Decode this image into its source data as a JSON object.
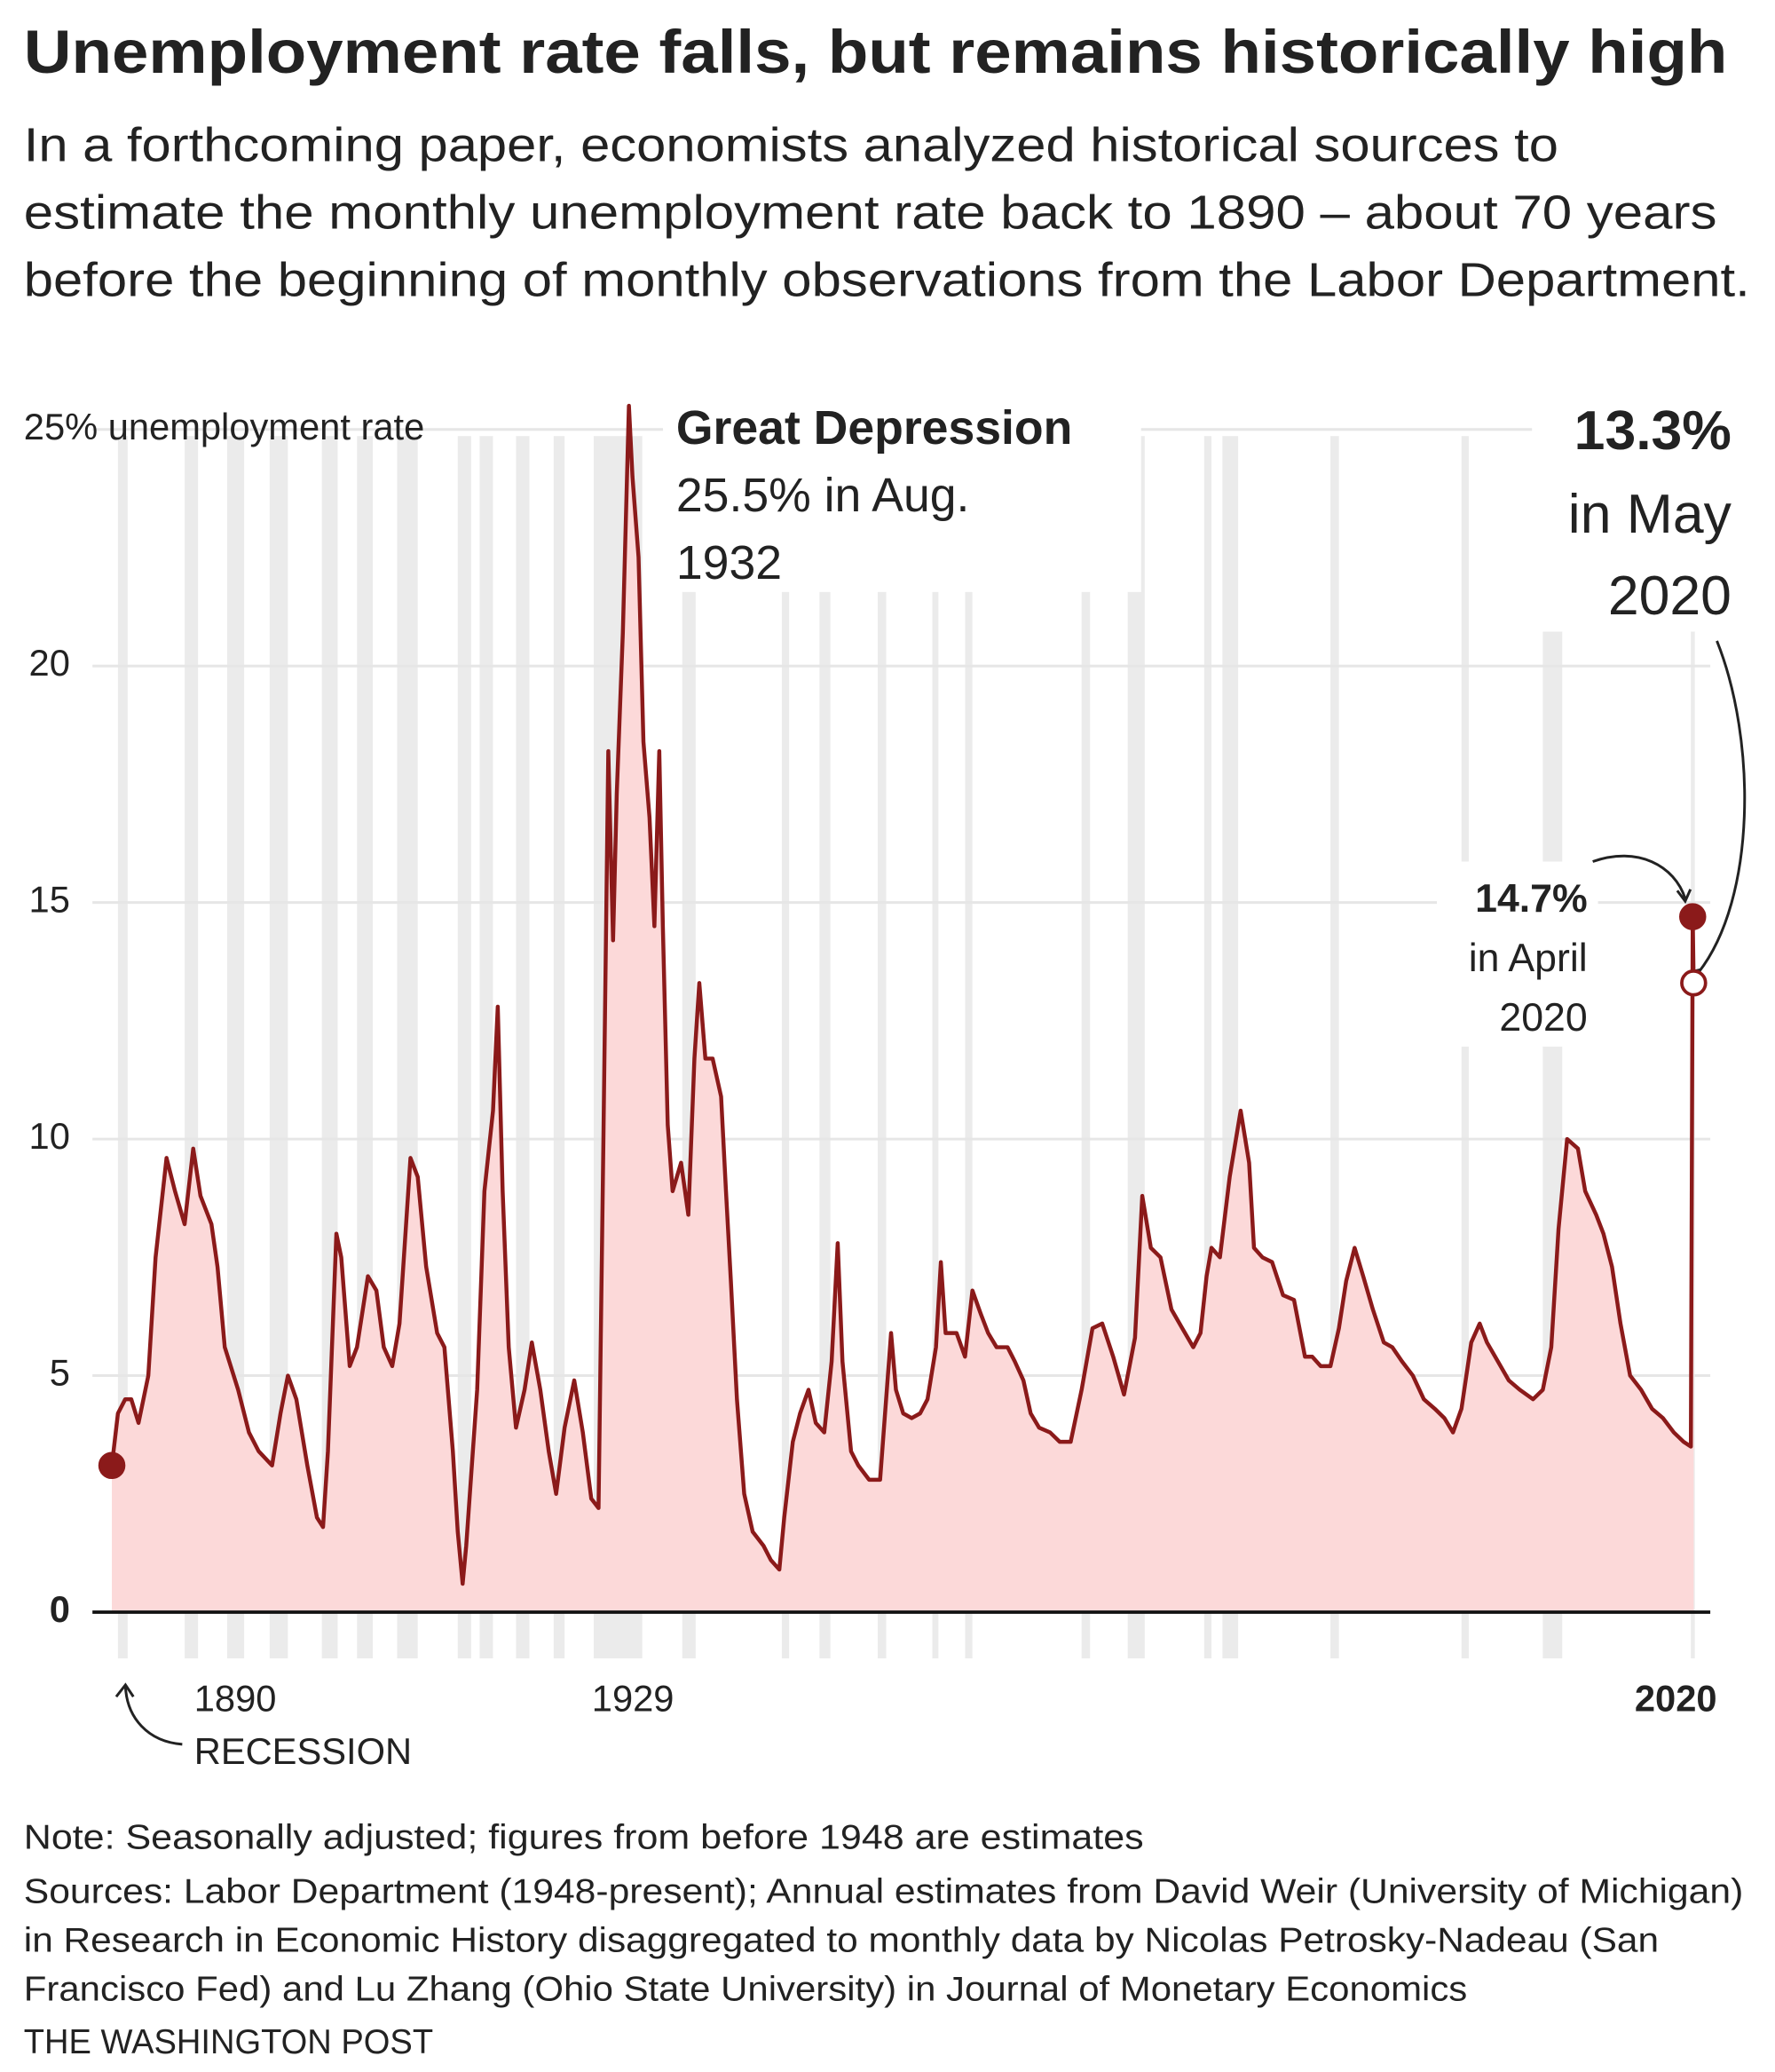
{
  "chart_data": {
    "type": "area",
    "title": "Unemployment rate falls, but remains historically high",
    "subtitle": [
      "In a forthcoming paper, economists analyzed historical sources to",
      "estimate the monthly unemployment rate back to 1890 – about 70 years",
      "before the beginning of monthly observations from the Labor Department."
    ],
    "color": "#8b1a1a",
    "fill_color": "#fcd9d9",
    "band_color": "#ebebeb",
    "grid": true,
    "xlim": [
      1888.4,
      2021.7
    ],
    "ylim": [
      0,
      25
    ],
    "yticks": [
      0,
      5,
      10,
      15,
      20,
      {
        "value": 25,
        "label": "25% unemployment rate"
      }
    ],
    "xticks": [
      1890,
      1929,
      2020
    ],
    "x": [
      1890.0,
      1890.5,
      1891.1,
      1891.6,
      1892.2,
      1893.0,
      1893.6,
      1894.5,
      1895.2,
      1896.0,
      1896.7,
      1897.3,
      1898.2,
      1898.7,
      1899.3,
      1900.4,
      1901.3,
      1902.1,
      1903.2,
      1903.9,
      1904.5,
      1905.2,
      1906.1,
      1906.9,
      1907.4,
      1907.8,
      1908.5,
      1908.9,
      1909.6,
      1910.2,
      1911.1,
      1911.8,
      1912.4,
      1913.1,
      1913.7,
      1914.6,
      1915.2,
      1915.9,
      1916.8,
      1917.4,
      1918.1,
      1918.5,
      1918.9,
      1919.2,
      1920.1,
      1920.7,
      1921.4,
      1921.8,
      1922.2,
      1922.7,
      1923.3,
      1924.0,
      1924.6,
      1925.3,
      1926.0,
      1926.6,
      1927.3,
      1928.1,
      1928.8,
      1929.5,
      1930.1,
      1930.5,
      1930.9,
      1931.3,
      1931.6,
      1932.1,
      1932.6,
      1932.9,
      1933.4,
      1933.8,
      1934.3,
      1934.7,
      1935.1,
      1935.4,
      1935.8,
      1936.2,
      1936.9,
      1937.5,
      1938.0,
      1938.4,
      1938.9,
      1939.5,
      1940.2,
      1940.6,
      1941.0,
      1941.5,
      1942.1,
      1942.8,
      1943.7,
      1944.3,
      1945.0,
      1945.4,
      1946.1,
      1946.7,
      1947.4,
      1948.0,
      1948.7,
      1949.3,
      1949.8,
      1950.2,
      1950.9,
      1951.5,
      1952.4,
      1953.3,
      1954.2,
      1954.6,
      1955.2,
      1955.9,
      1956.6,
      1957.2,
      1957.9,
      1958.3,
      1958.7,
      1959.6,
      1960.3,
      1960.9,
      1961.6,
      1962.2,
      1962.9,
      1963.8,
      1964.4,
      1965.1,
      1965.7,
      1966.4,
      1967.3,
      1968.1,
      1969.0,
      1969.9,
      1970.8,
      1971.6,
      1972.5,
      1973.4,
      1974.3,
      1974.9,
      1975.6,
      1976.4,
      1977.3,
      1978.2,
      1979.1,
      1979.7,
      1980.2,
      1980.6,
      1981.3,
      1982.1,
      1983.0,
      1983.7,
      1984.1,
      1984.8,
      1985.6,
      1986.5,
      1987.4,
      1988.3,
      1988.9,
      1989.6,
      1990.4,
      1991.1,
      1991.7,
      1992.4,
      1993.1,
      1993.9,
      1994.8,
      1995.5,
      1996.3,
      1997.2,
      1998.1,
      1999.0,
      1999.8,
      2000.5,
      2001.2,
      2002.0,
      2002.7,
      2003.3,
      2004.2,
      2005.1,
      2006.0,
      2007.1,
      2007.9,
      2008.6,
      2009.2,
      2009.9,
      2010.8,
      2011.4,
      2012.3,
      2012.9,
      2013.6,
      2014.3,
      2015.1,
      2016.0,
      2016.9,
      2017.8,
      2018.7,
      2019.5,
      2020.1,
      2020.25,
      2020.33
    ],
    "values": [
      3.1,
      4.2,
      4.5,
      4.5,
      4.0,
      5.0,
      7.5,
      9.6,
      8.9,
      8.2,
      9.8,
      8.8,
      8.2,
      7.3,
      5.6,
      4.7,
      3.8,
      3.4,
      3.1,
      4.2,
      5.0,
      4.5,
      3.1,
      2.0,
      1.8,
      3.4,
      8.0,
      7.5,
      5.2,
      5.6,
      7.1,
      6.8,
      5.6,
      5.2,
      6.1,
      9.6,
      9.2,
      7.3,
      5.9,
      5.6,
      3.4,
      1.7,
      0.6,
      1.4,
      4.7,
      8.9,
      10.6,
      12.8,
      8.9,
      5.6,
      3.9,
      4.7,
      5.7,
      4.7,
      3.4,
      2.5,
      3.9,
      4.9,
      3.8,
      2.4,
      2.2,
      10.0,
      18.2,
      14.2,
      17.3,
      20.7,
      25.5,
      24.0,
      22.3,
      18.4,
      16.8,
      14.5,
      18.2,
      14.5,
      10.3,
      8.9,
      9.5,
      8.4,
      11.7,
      13.3,
      11.7,
      11.7,
      10.9,
      8.9,
      7.0,
      4.5,
      2.5,
      1.7,
      1.4,
      1.1,
      0.9,
      2.0,
      3.6,
      4.2,
      4.7,
      4.0,
      3.8,
      5.3,
      7.8,
      5.3,
      3.4,
      3.1,
      2.8,
      2.8,
      5.9,
      4.7,
      4.2,
      4.1,
      4.2,
      4.5,
      5.6,
      7.4,
      5.9,
      5.9,
      5.4,
      6.8,
      6.3,
      5.9,
      5.6,
      5.6,
      5.3,
      4.9,
      4.2,
      3.9,
      3.8,
      3.6,
      3.6,
      4.7,
      6.0,
      6.1,
      5.4,
      4.6,
      5.8,
      8.8,
      7.7,
      7.5,
      6.4,
      6.0,
      5.6,
      5.9,
      7.1,
      7.7,
      7.5,
      9.2,
      10.6,
      9.5,
      7.7,
      7.5,
      7.4,
      6.7,
      6.6,
      5.4,
      5.4,
      5.2,
      5.2,
      6.0,
      7.0,
      7.7,
      7.1,
      6.4,
      5.7,
      5.6,
      5.3,
      5.0,
      4.5,
      4.3,
      4.1,
      3.8,
      4.3,
      5.7,
      6.1,
      5.7,
      5.3,
      4.9,
      4.7,
      4.5,
      4.7,
      5.6,
      8.1,
      10.0,
      9.8,
      8.9,
      8.4,
      8.0,
      7.3,
      6.1,
      5.0,
      4.7,
      4.3,
      4.1,
      3.8,
      3.6,
      3.5,
      14.7,
      13.3
    ],
    "recessions": [
      [
        1890.5,
        1891.3
      ],
      [
        1896.0,
        1897.1
      ],
      [
        1899.5,
        1900.9
      ],
      [
        1903.0,
        1904.5
      ],
      [
        1907.3,
        1908.6
      ],
      [
        1910.2,
        1911.5
      ],
      [
        1913.5,
        1915.2
      ],
      [
        1918.5,
        1919.6
      ],
      [
        1920.3,
        1921.4
      ],
      [
        1923.3,
        1924.4
      ],
      [
        1926.4,
        1927.3
      ],
      [
        1929.7,
        1933.7
      ],
      [
        1937.0,
        1938.1
      ],
      [
        1945.2,
        1945.8
      ],
      [
        1948.3,
        1949.2
      ],
      [
        1953.1,
        1953.8
      ],
      [
        1957.6,
        1958.1
      ],
      [
        1960.3,
        1960.9
      ],
      [
        1969.9,
        1970.6
      ],
      [
        1973.7,
        1975.1
      ],
      [
        1980.0,
        1980.6
      ],
      [
        1981.5,
        1982.8
      ],
      [
        1990.4,
        1991.1
      ],
      [
        2001.2,
        2001.8
      ],
      [
        2007.9,
        2009.5
      ],
      [
        2020.1,
        2020.4
      ]
    ],
    "annotations": {
      "great_depression": [
        "Great Depression",
        "25.5% in Aug.",
        "1932"
      ],
      "may": [
        "13.3%",
        "in May",
        "2020"
      ],
      "april": [
        "14.7%",
        "in April",
        "2020"
      ],
      "recession": "RECESSION"
    },
    "note": "Note: Seasonally adjusted; figures from before 1948 are estimates",
    "sources": [
      "Sources: Labor Department (1948-present); Annual estimates from David Weir (University of Michigan)",
      "in Research in Economic History disaggregated to monthly data by Nicolas Petrosky-Nadeau (San",
      "Francisco Fed) and Lu Zhang (Ohio State University) in Journal of Monetary Economics"
    ],
    "credit": "THE WASHINGTON POST"
  }
}
